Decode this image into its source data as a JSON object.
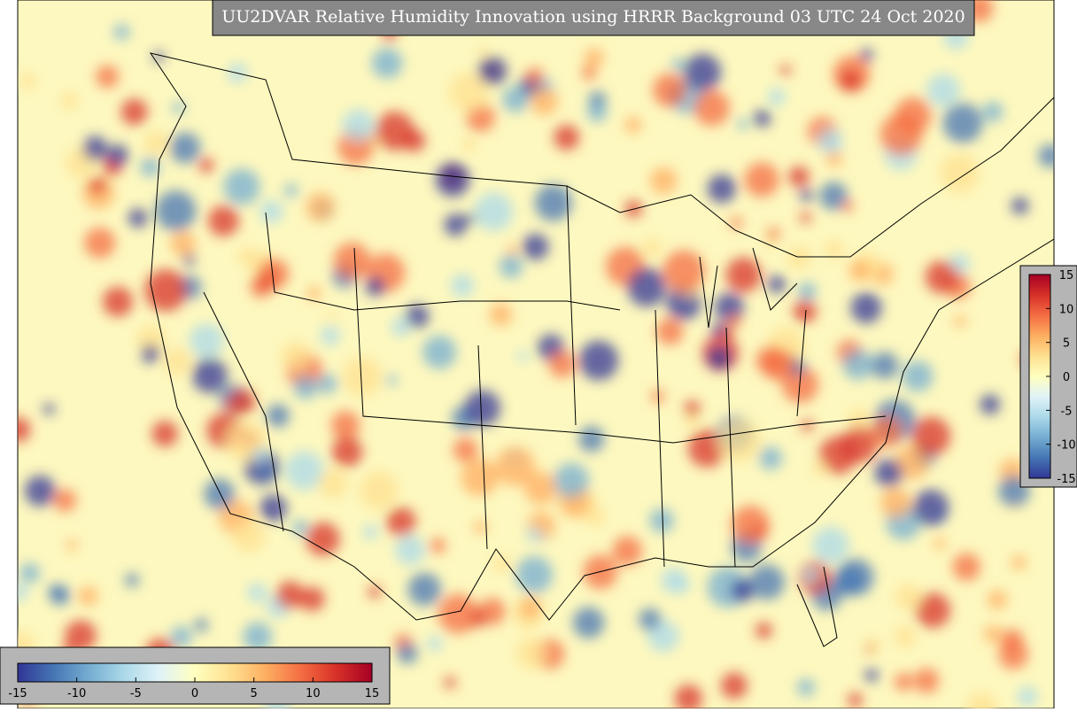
{
  "title": "UU2DVAR Relative Humidity Innovation using HRRR Background 03 UTC 24 Oct 2020",
  "colorbars": [
    {
      "orientation": "horizontal",
      "range": [
        -15,
        15
      ],
      "ticks": [
        -15,
        -10,
        -5,
        0,
        5,
        10,
        15
      ]
    },
    {
      "orientation": "vertical",
      "range": [
        -15,
        15
      ],
      "ticks": [
        -15,
        -10,
        -5,
        0,
        5,
        10,
        15
      ]
    }
  ],
  "colormap": [
    "#313695",
    "#4575b4",
    "#74add1",
    "#abd9e9",
    "#e0f3f8",
    "#ffffbf",
    "#fee090",
    "#fdae61",
    "#f46d43",
    "#d73027",
    "#a50026"
  ]
}
